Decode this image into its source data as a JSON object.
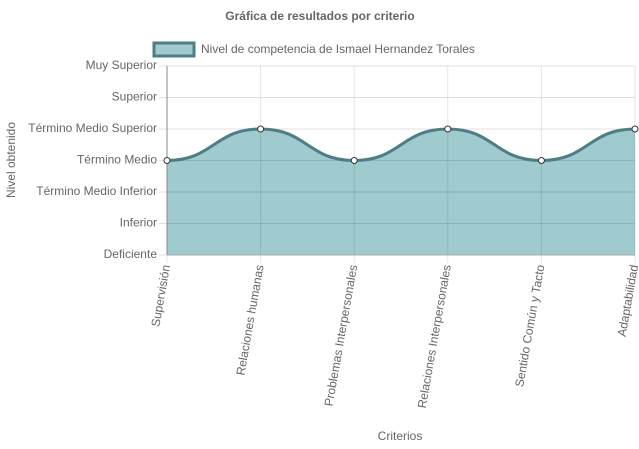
{
  "chart_data": {
    "type": "line",
    "title": "Gráfica de resultados por criterio",
    "x_label": "Criterios",
    "y_label": "Nivel obtenido",
    "categories": [
      "Supervisión",
      "Relaciones humanas",
      "Problemas Interpersonales",
      "Relaciones Interpersonales",
      "Sentido Común y Tacto",
      "Adaptabilidad"
    ],
    "series": [
      {
        "name": "Nivel de competencia de Ismael Hernandez Torales",
        "color": "#4e7d84",
        "fill_color": "#9fcbcf",
        "values": [
          3,
          4,
          3,
          4,
          3,
          4
        ]
      }
    ],
    "ylim": [
      0,
      6
    ],
    "yticks": [
      {
        "value": 0,
        "label": "Deficiente"
      },
      {
        "value": 1,
        "label": "Inferior"
      },
      {
        "value": 2,
        "label": "Término Medio Inferior"
      },
      {
        "value": 3,
        "label": "Término Medio"
      },
      {
        "value": 4,
        "label": "Término Medio Superior"
      },
      {
        "value": 5,
        "label": "Superior"
      },
      {
        "value": 6,
        "label": "Muy Superior"
      }
    ],
    "grid": true
  }
}
